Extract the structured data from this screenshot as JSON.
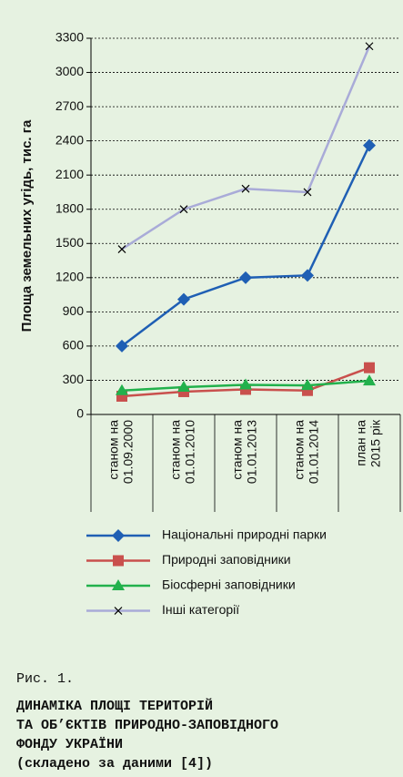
{
  "chart_data": {
    "type": "line",
    "ylabel": "Площа земельних угідь, тис. га",
    "categories": [
      [
        "станом на",
        "01.09.2000"
      ],
      [
        "станом на",
        "01.01.2010"
      ],
      [
        "станом на",
        "01.01.2013"
      ],
      [
        "станом на",
        "01.01.2014"
      ],
      [
        "план на",
        "2015 рік"
      ]
    ],
    "series": [
      {
        "name": "Національні природні парки",
        "color": "#1f5fb4",
        "marker": "diamond",
        "values": [
          600,
          1010,
          1200,
          1220,
          2360
        ]
      },
      {
        "name": "Природні заповідники",
        "color": "#c9504d",
        "marker": "square",
        "values": [
          160,
          200,
          220,
          210,
          410
        ]
      },
      {
        "name": "Біосферні заповідники",
        "color": "#22b14c",
        "marker": "triangle",
        "values": [
          210,
          240,
          260,
          255,
          295
        ]
      },
      {
        "name": "Інші категорії",
        "color": "#a9abd8",
        "marker": "x",
        "values": [
          1450,
          1800,
          1980,
          1950,
          3230
        ]
      }
    ],
    "ylim": [
      0,
      3300
    ],
    "yticks": [
      0,
      300,
      600,
      900,
      1200,
      1500,
      1800,
      2100,
      2400,
      2700,
      3000,
      3300
    ],
    "grid": true,
    "caption": {
      "number": "Рис. 1.",
      "title": [
        "ДИНАМІКА ПЛОЩІ ТЕРИТОРІЙ",
        "ТА ОБ’ЄКТІВ ПРИРОДНО-ЗАПОВІДНОГО",
        "ФОНДУ УКРАЇНИ",
        "(складено за даними [4])"
      ]
    }
  }
}
